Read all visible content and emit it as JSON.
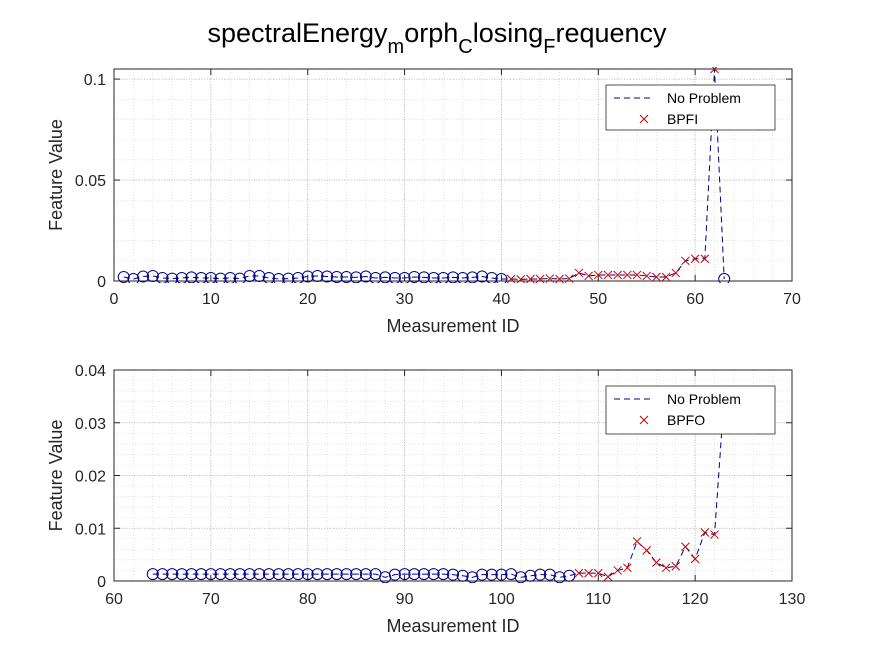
{
  "figure": {
    "title_parts": [
      {
        "text": "spectralEnergy",
        "sub": false
      },
      {
        "text": "m",
        "sub": true
      },
      {
        "text": "orph",
        "sub": false
      },
      {
        "text": "C",
        "sub": true
      },
      {
        "text": "losing",
        "sub": false
      },
      {
        "text": "F",
        "sub": true
      },
      {
        "text": "requency",
        "sub": false
      }
    ]
  },
  "colors": {
    "no_problem": "#00008B",
    "fault": "#CC0000",
    "grid": "#b4b4b4",
    "axis": "#262626"
  },
  "chart_data": [
    {
      "type": "line",
      "xlabel": "Measurement ID",
      "ylabel": "Feature Value",
      "xlim": [
        0,
        70
      ],
      "ylim": [
        0,
        0.105
      ],
      "xticks": [
        0,
        10,
        20,
        30,
        40,
        50,
        60,
        70
      ],
      "yticks": [
        0,
        0.05,
        0.1
      ],
      "ytick_labels": [
        "0",
        "0.05",
        "0.1"
      ],
      "grid": true,
      "minor_grid": true,
      "legend": {
        "placement": "top-right",
        "entries": [
          {
            "label": "No Problem",
            "style": "dashed-line"
          },
          {
            "label": "BPFI",
            "style": "x-marker"
          }
        ]
      },
      "series": [
        {
          "name": "No Problem",
          "style": "dashed-line",
          "x": [
            1,
            2,
            3,
            4,
            5,
            6,
            7,
            8,
            9,
            10,
            11,
            12,
            13,
            14,
            15,
            16,
            17,
            18,
            19,
            20,
            21,
            22,
            23,
            24,
            25,
            26,
            27,
            28,
            29,
            30,
            31,
            32,
            33,
            34,
            35,
            36,
            37,
            38,
            39,
            40,
            41,
            42,
            43,
            44,
            45,
            46,
            47,
            48,
            49,
            50,
            51,
            52,
            53,
            54,
            55,
            56,
            57,
            58,
            59,
            60,
            61,
            62,
            63
          ],
          "y": [
            0.002,
            0.001,
            0.0022,
            0.0025,
            0.0015,
            0.0012,
            0.0015,
            0.0018,
            0.0015,
            0.0015,
            0.0012,
            0.0015,
            0.0012,
            0.0025,
            0.0025,
            0.0015,
            0.001,
            0.0012,
            0.0015,
            0.0022,
            0.0025,
            0.0022,
            0.002,
            0.002,
            0.0018,
            0.0022,
            0.0015,
            0.0018,
            0.0015,
            0.0015,
            0.002,
            0.0018,
            0.0015,
            0.0015,
            0.0018,
            0.0015,
            0.0018,
            0.0022,
            0.0015,
            0.001,
            0.001,
            0.0008,
            0.001,
            0.001,
            0.0012,
            0.001,
            0.0012,
            0.004,
            0.0025,
            0.003,
            0.003,
            0.003,
            0.003,
            0.003,
            0.0025,
            0.002,
            0.002,
            0.004,
            0.01,
            0.011,
            0.011,
            0.105,
            0.001
          ]
        },
        {
          "name": "No Problem",
          "style": "circle-marker",
          "x": [
            1,
            2,
            3,
            4,
            5,
            6,
            7,
            8,
            9,
            10,
            11,
            12,
            13,
            14,
            15,
            16,
            17,
            18,
            19,
            20,
            21,
            22,
            23,
            24,
            25,
            26,
            27,
            28,
            29,
            30,
            31,
            32,
            33,
            34,
            35,
            36,
            37,
            38,
            39,
            40,
            63
          ],
          "y": [
            0.002,
            0.001,
            0.0022,
            0.0025,
            0.0015,
            0.0012,
            0.0015,
            0.0018,
            0.0015,
            0.0015,
            0.0012,
            0.0015,
            0.0012,
            0.0025,
            0.0025,
            0.0015,
            0.001,
            0.0012,
            0.0015,
            0.0022,
            0.0025,
            0.0022,
            0.002,
            0.002,
            0.0018,
            0.0022,
            0.0015,
            0.0018,
            0.0015,
            0.0015,
            0.002,
            0.0018,
            0.0015,
            0.0015,
            0.0018,
            0.0015,
            0.0018,
            0.0022,
            0.0015,
            0.001,
            0.001
          ]
        },
        {
          "name": "BPFI",
          "style": "x-marker",
          "x": [
            41,
            42,
            43,
            44,
            45,
            46,
            47,
            48,
            49,
            50,
            51,
            52,
            53,
            54,
            55,
            56,
            57,
            58,
            59,
            60,
            61,
            62
          ],
          "y": [
            0.001,
            0.0008,
            0.001,
            0.001,
            0.0012,
            0.001,
            0.0012,
            0.004,
            0.0025,
            0.003,
            0.003,
            0.003,
            0.003,
            0.003,
            0.0025,
            0.002,
            0.002,
            0.004,
            0.01,
            0.011,
            0.011,
            0.105
          ]
        }
      ]
    },
    {
      "type": "line",
      "xlabel": "Measurement ID",
      "ylabel": "Feature Value",
      "xlim": [
        60,
        130
      ],
      "ylim": [
        0,
        0.04
      ],
      "xticks": [
        60,
        70,
        80,
        90,
        100,
        110,
        120,
        130
      ],
      "yticks": [
        0,
        0.01,
        0.02,
        0.03,
        0.04
      ],
      "ytick_labels": [
        "0",
        "0.01",
        "0.02",
        "0.03",
        "0.04"
      ],
      "grid": true,
      "minor_grid": true,
      "legend": {
        "placement": "top-right",
        "entries": [
          {
            "label": "No Problem",
            "style": "dashed-line"
          },
          {
            "label": "BPFO",
            "style": "x-marker"
          }
        ]
      },
      "series": [
        {
          "name": "No Problem",
          "style": "dashed-line",
          "x": [
            64,
            65,
            66,
            67,
            68,
            69,
            70,
            71,
            72,
            73,
            74,
            75,
            76,
            77,
            78,
            79,
            80,
            81,
            82,
            83,
            84,
            85,
            86,
            87,
            88,
            89,
            90,
            91,
            92,
            93,
            94,
            95,
            96,
            97,
            98,
            99,
            100,
            101,
            102,
            103,
            104,
            105,
            106,
            107,
            108,
            109,
            110,
            111,
            112,
            113,
            114,
            115,
            116,
            117,
            118,
            119,
            120,
            121,
            122,
            123
          ],
          "y": [
            0.0013,
            0.0013,
            0.0013,
            0.0013,
            0.0013,
            0.0013,
            0.0013,
            0.0013,
            0.0013,
            0.0013,
            0.0013,
            0.0013,
            0.0013,
            0.0013,
            0.0013,
            0.0013,
            0.0013,
            0.0013,
            0.0013,
            0.0013,
            0.0013,
            0.0013,
            0.0013,
            0.0013,
            0.0007,
            0.0012,
            0.0013,
            0.0013,
            0.0013,
            0.0013,
            0.0013,
            0.0012,
            0.001,
            0.0007,
            0.0012,
            0.0012,
            0.0012,
            0.0013,
            0.0007,
            0.001,
            0.0012,
            0.0012,
            0.0007,
            0.001,
            0.0015,
            0.0015,
            0.0015,
            0.0008,
            0.002,
            0.0025,
            0.0075,
            0.0058,
            0.0035,
            0.0025,
            0.0028,
            0.0065,
            0.0042,
            0.0092,
            0.0088,
            0.035
          ]
        },
        {
          "name": "No Problem",
          "style": "circle-marker",
          "x": [
            64,
            65,
            66,
            67,
            68,
            69,
            70,
            71,
            72,
            73,
            74,
            75,
            76,
            77,
            78,
            79,
            80,
            81,
            82,
            83,
            84,
            85,
            86,
            87,
            88,
            89,
            90,
            91,
            92,
            93,
            94,
            95,
            96,
            97,
            98,
            99,
            100,
            101,
            102,
            103,
            104,
            105,
            106,
            107
          ],
          "y": [
            0.0013,
            0.0013,
            0.0013,
            0.0013,
            0.0013,
            0.0013,
            0.0013,
            0.0013,
            0.0013,
            0.0013,
            0.0013,
            0.0013,
            0.0013,
            0.0013,
            0.0013,
            0.0013,
            0.0013,
            0.0013,
            0.0013,
            0.0013,
            0.0013,
            0.0013,
            0.0013,
            0.0013,
            0.0007,
            0.0012,
            0.0013,
            0.0013,
            0.0013,
            0.0013,
            0.0013,
            0.0012,
            0.001,
            0.0007,
            0.0012,
            0.0012,
            0.0012,
            0.0013,
            0.0007,
            0.001,
            0.0012,
            0.0012,
            0.0007,
            0.001
          ]
        },
        {
          "name": "BPFO",
          "style": "x-marker",
          "x": [
            108,
            109,
            110,
            111,
            112,
            113,
            114,
            115,
            116,
            117,
            118,
            119,
            120,
            121,
            122
          ],
          "y": [
            0.0015,
            0.0015,
            0.0015,
            0.0008,
            0.002,
            0.0025,
            0.0075,
            0.0058,
            0.0035,
            0.0025,
            0.0028,
            0.0065,
            0.0042,
            0.0092,
            0.0088
          ]
        }
      ]
    }
  ]
}
